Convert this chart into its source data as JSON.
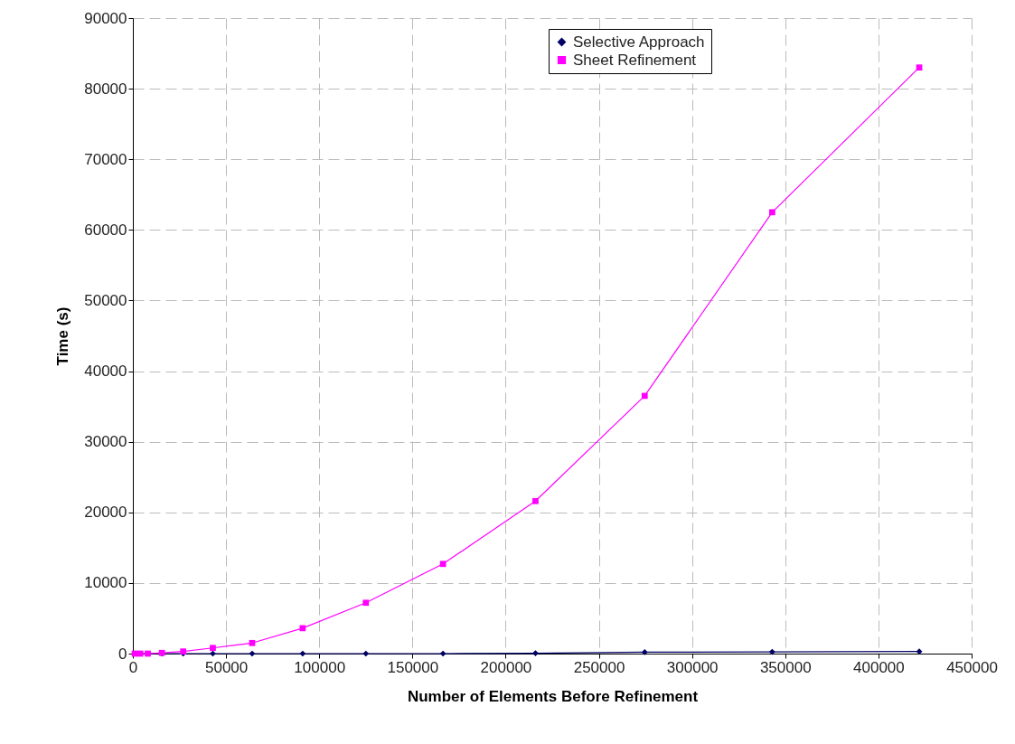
{
  "chart_data": {
    "type": "line",
    "xlabel": "Number of Elements Before Refinement",
    "ylabel": "Time (s)",
    "x": [
      1000,
      4000,
      8000,
      15600,
      27000,
      42900,
      64000,
      91100,
      125000,
      166400,
      216000,
      274600,
      343000,
      421900
    ],
    "series": [
      {
        "name": "Selective Approach",
        "color": "#000066",
        "marker": "diamond",
        "values": [
          0,
          0,
          0,
          0,
          0,
          0,
          0,
          0,
          0,
          0,
          50,
          200,
          250,
          300
        ]
      },
      {
        "name": "Sheet Refinement",
        "color": "#ff00ff",
        "marker": "square",
        "values": [
          0,
          0,
          0,
          100,
          300,
          800,
          1500,
          3600,
          7200,
          12700,
          21600,
          36500,
          62500,
          83000
        ]
      }
    ],
    "xlim": [
      0,
      450000
    ],
    "xticks": [
      0,
      50000,
      100000,
      150000,
      200000,
      250000,
      300000,
      350000,
      400000,
      450000
    ],
    "ylim": [
      0,
      90000
    ],
    "yticks": [
      0,
      10000,
      20000,
      30000,
      40000,
      50000,
      60000,
      70000,
      80000,
      90000
    ],
    "grid": true,
    "legend": "top right",
    "line_style": "solid"
  }
}
